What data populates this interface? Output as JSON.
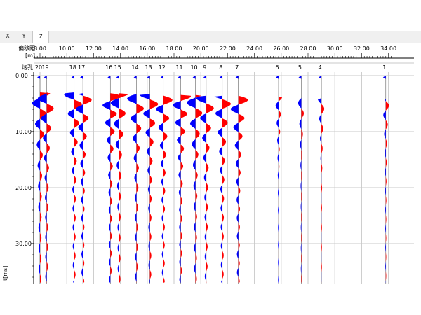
{
  "tabs": [
    "X",
    "Y",
    "Z"
  ],
  "active_tab": "Z",
  "header": {
    "offset_label": "偏移距\n[m]",
    "shot_label": "炮孔",
    "time_axis_label": "t[ms]"
  },
  "colors": {
    "positive": "#ff0000",
    "negative": "#0000ff",
    "grid": "#c8c8c8",
    "trace": "#606060"
  },
  "offset_axis": {
    "min": 8,
    "max": 34,
    "major_step": 2,
    "ticks": [
      "8.00",
      "10.00",
      "12.00",
      "14.00",
      "16.00",
      "18.00",
      "20.00",
      "22.00",
      "24.00",
      "26.00",
      "28.00",
      "30.00",
      "32.00",
      "34.00"
    ]
  },
  "time_axis": {
    "min": 0,
    "max": 38,
    "ticks": [
      "0.00",
      "10.00",
      "20.00",
      "30.00"
    ]
  },
  "traces": [
    {
      "id": "20",
      "offset": 8.0
    },
    {
      "id": "19",
      "offset": 8.5
    },
    {
      "id": "18",
      "offset": 10.55
    },
    {
      "id": "17",
      "offset": 11.2
    },
    {
      "id": "16",
      "offset": 13.25
    },
    {
      "id": "15",
      "offset": 13.9
    },
    {
      "id": "14",
      "offset": 15.2
    },
    {
      "id": "13",
      "offset": 16.2
    },
    {
      "id": "12",
      "offset": 17.2
    },
    {
      "id": "11",
      "offset": 18.5
    },
    {
      "id": "10",
      "offset": 19.6
    },
    {
      "id": "9",
      "offset": 20.4
    },
    {
      "id": "8",
      "offset": 21.6
    },
    {
      "id": "7",
      "offset": 22.8
    },
    {
      "id": "6",
      "offset": 25.8
    },
    {
      "id": "5",
      "offset": 27.5
    },
    {
      "id": "4",
      "offset": 29.0
    },
    {
      "id": "1",
      "offset": 33.8
    }
  ]
}
